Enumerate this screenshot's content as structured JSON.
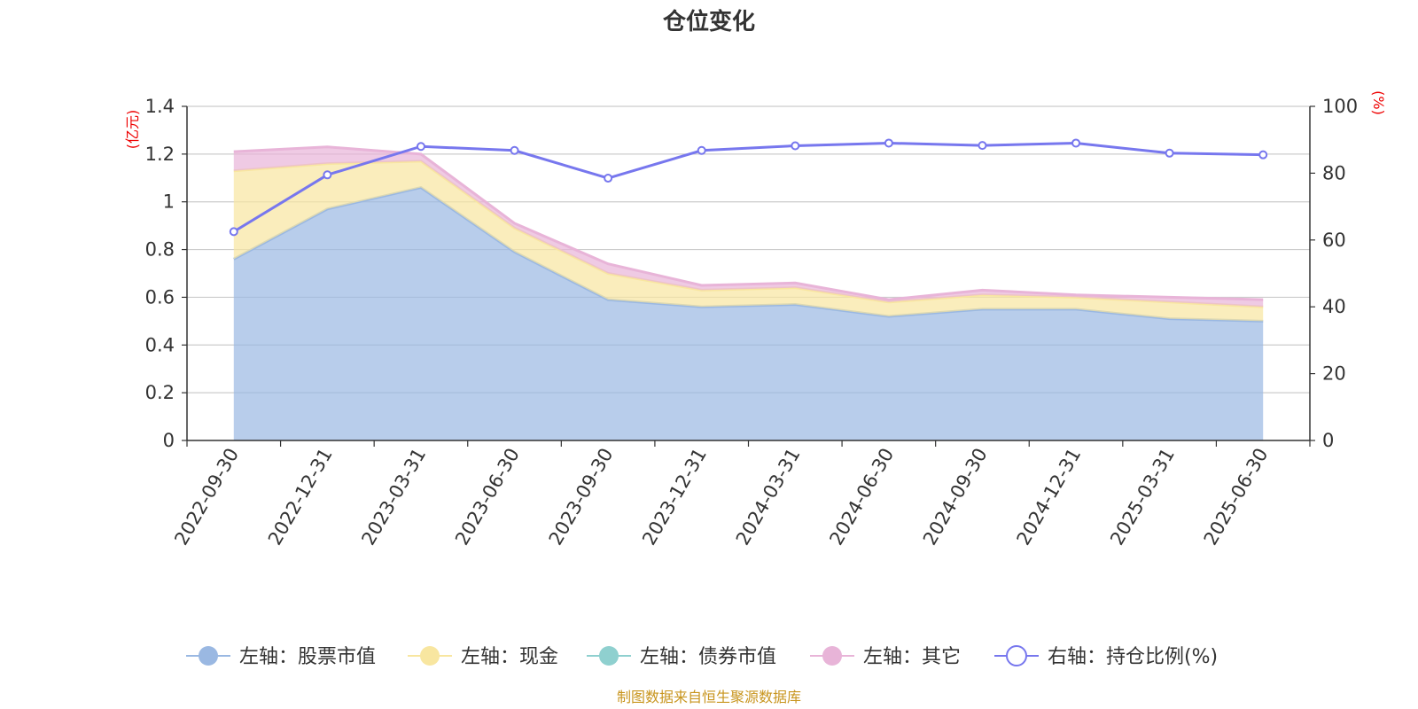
{
  "chart_data": {
    "type": "area",
    "title": "仓位变化",
    "left_axis_unit": "(亿元)",
    "right_axis_unit": "(%)",
    "categories": [
      "2022-09-30",
      "2022-12-31",
      "2023-03-31",
      "2023-06-30",
      "2023-09-30",
      "2023-12-31",
      "2024-03-31",
      "2024-06-30",
      "2024-09-30",
      "2024-12-31",
      "2025-03-31",
      "2025-06-30"
    ],
    "left_ylim": [
      0,
      1.4
    ],
    "left_ticks": [
      "0",
      "0.2",
      "0.4",
      "0.6",
      "0.8",
      "1",
      "1.2",
      "1.4"
    ],
    "right_ylim": [
      0,
      100
    ],
    "right_ticks": [
      "0",
      "20",
      "40",
      "60",
      "80",
      "100"
    ],
    "stacked": true,
    "series": [
      {
        "name": "左轴：股票市值",
        "axis": "left",
        "type": "area",
        "color": "#9ab8e2",
        "values": [
          0.76,
          0.97,
          1.06,
          0.79,
          0.59,
          0.56,
          0.57,
          0.52,
          0.55,
          0.55,
          0.51,
          0.5
        ]
      },
      {
        "name": "左轴：现金",
        "axis": "left",
        "type": "area",
        "color": "#f8e6a0",
        "values": [
          0.37,
          0.19,
          0.11,
          0.1,
          0.11,
          0.07,
          0.07,
          0.06,
          0.06,
          0.05,
          0.07,
          0.06
        ]
      },
      {
        "name": "左轴：债券市值",
        "axis": "left",
        "type": "area",
        "color": "#8fd0cf",
        "values": [
          0,
          0,
          0,
          0,
          0,
          0,
          0,
          0,
          0,
          0,
          0,
          0
        ]
      },
      {
        "name": "左轴：其它",
        "axis": "left",
        "type": "area",
        "color": "#e8b4d8",
        "values": [
          0.08,
          0.07,
          0.03,
          0.02,
          0.04,
          0.02,
          0.02,
          0.01,
          0.02,
          0.01,
          0.02,
          0.03
        ]
      },
      {
        "name": "右轴：持仓比例(%)",
        "axis": "right",
        "type": "line",
        "color": "#7777ee",
        "values": [
          62.5,
          79.5,
          88.0,
          86.8,
          78.5,
          86.8,
          88.2,
          89.0,
          88.3,
          89.0,
          86.0,
          85.5
        ]
      }
    ],
    "legend_position": "bottom",
    "grid": true
  },
  "footer": {
    "source": "制图数据来自恒生聚源数据库"
  }
}
